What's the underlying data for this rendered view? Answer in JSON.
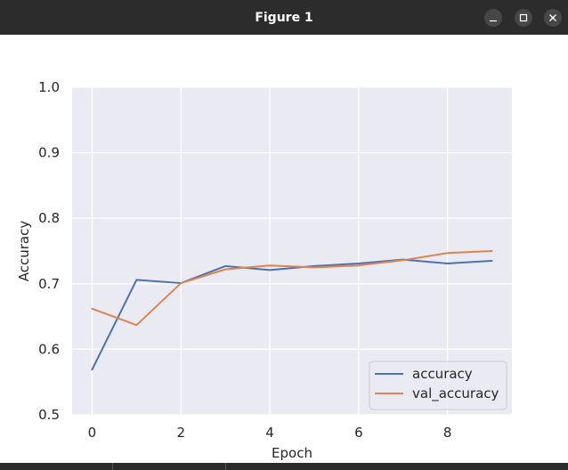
{
  "window": {
    "title": "Figure 1",
    "buttons": [
      "minimize",
      "maximize",
      "close"
    ]
  },
  "icons": {
    "minimize": "minimize-icon",
    "maximize": "maximize-icon",
    "close": "close-icon"
  },
  "colors": {
    "titlebar": "#2c2c2c",
    "plot_background": "#eaeaf2",
    "grid": "#ffffff",
    "accuracy": "#4c72b0",
    "val_accuracy": "#dd8452"
  },
  "chart_data": {
    "type": "line",
    "x": [
      0,
      1,
      2,
      3,
      4,
      5,
      6,
      7,
      8,
      9
    ],
    "series": [
      {
        "name": "accuracy",
        "values": [
          0.569,
          0.706,
          0.701,
          0.727,
          0.721,
          0.727,
          0.731,
          0.737,
          0.731,
          0.735
        ]
      },
      {
        "name": "val_accuracy",
        "values": [
          0.662,
          0.637,
          0.701,
          0.722,
          0.728,
          0.725,
          0.728,
          0.736,
          0.747,
          0.75
        ]
      }
    ],
    "xlabel": "Epoch",
    "ylabel": "Accuracy",
    "xlim": [
      -0.45,
      9.45
    ],
    "ylim": [
      0.5,
      1.0
    ],
    "xticks": [
      0,
      2,
      4,
      6,
      8
    ],
    "yticks": [
      0.5,
      0.6,
      0.7,
      0.8,
      0.9,
      1.0
    ],
    "ytick_labels": [
      "0.5",
      "0.6",
      "0.7",
      "0.8",
      "0.9",
      "1.0"
    ],
    "grid": true,
    "legend_position": "lower right"
  }
}
